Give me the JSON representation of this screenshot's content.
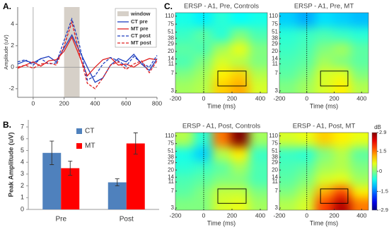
{
  "chart_data": [
    {
      "type": "line",
      "panel": "A.",
      "ylabel": "Amplitude (uV)",
      "x": [
        -100,
        -50,
        0,
        50,
        100,
        150,
        200,
        250,
        300,
        350,
        400,
        450,
        500,
        550,
        600,
        650,
        700,
        750,
        800
      ],
      "xlim": [
        -100,
        800
      ],
      "xticks": [
        0,
        200,
        400,
        600,
        800
      ],
      "ylim": [
        -2.8,
        5.6
      ],
      "yticks": [
        -2,
        0,
        2,
        4
      ],
      "window": {
        "label": "window",
        "range": [
          200,
          300
        ],
        "color": "#d6d0c8"
      },
      "series": [
        {
          "name": "CT pre",
          "color": "#1f3fbf",
          "dash": false,
          "values": [
            0.3,
            0.6,
            0.4,
            0.8,
            1.0,
            0.5,
            1.8,
            3.0,
            1.5,
            0.0,
            -1.4,
            -1.0,
            0.2,
            0.8,
            0.5,
            1.2,
            0.3,
            -0.3,
            0.8
          ]
        },
        {
          "name": "MT pre",
          "color": "#e02020",
          "dash": false,
          "values": [
            -0.1,
            0.2,
            0.5,
            0.1,
            0.6,
            0.7,
            1.5,
            2.8,
            1.0,
            -0.8,
            0.0,
            0.7,
            0.9,
            0.2,
            0.3,
            0.0,
            0.5,
            0.8,
            0.7
          ]
        },
        {
          "name": "CT post",
          "color": "#1f3fbf",
          "dash": true,
          "values": [
            0.5,
            0.7,
            0.2,
            0.8,
            0.3,
            0.4,
            2.5,
            4.5,
            2.0,
            -1.2,
            -0.8,
            0.3,
            0.9,
            0.6,
            0.1,
            1.0,
            0.4,
            0.0,
            1.1
          ]
        },
        {
          "name": "MT post",
          "color": "#e02020",
          "dash": true,
          "values": [
            0.0,
            0.2,
            -0.1,
            0.3,
            0.4,
            0.2,
            2.0,
            4.2,
            1.2,
            -1.5,
            -2.0,
            -1.0,
            0.2,
            0.5,
            -0.2,
            0.3,
            0.6,
            -0.5,
            0.6
          ]
        }
      ]
    },
    {
      "type": "bar",
      "panel": "B.",
      "ylabel": "Peak Amplitude (uV)",
      "categories": [
        "Pre",
        "Post"
      ],
      "ylim": [
        0,
        7.6
      ],
      "yticks": [
        0,
        1,
        2,
        3,
        4,
        5,
        6,
        7
      ],
      "series": [
        {
          "name": "CT",
          "color": "#4f81bd",
          "values": [
            4.8,
            2.3
          ],
          "errors": [
            1.0,
            0.3
          ]
        },
        {
          "name": "MT",
          "color": "#ff0000",
          "values": [
            3.5,
            5.6
          ],
          "errors": [
            0.6,
            0.9
          ]
        }
      ]
    },
    {
      "type": "heatmap",
      "panel": "C.",
      "title": "ERSP - A1, Pre, Controls",
      "xlabel": "Time (ms)",
      "xlim": [
        -200,
        450
      ],
      "xticks": [
        -200,
        0,
        200,
        400
      ],
      "ylim": [
        2.7,
        130
      ],
      "log_y": true,
      "yticks": [
        110,
        75,
        51,
        38,
        29,
        20,
        14,
        11,
        7,
        3
      ],
      "colormap": "jet",
      "zlim": [
        -2.9,
        2.9
      ],
      "x_edges": [
        -200,
        -70,
        60,
        190,
        320,
        450
      ],
      "y_edges": [
        2.7,
        5,
        9,
        17,
        32,
        65,
        130
      ],
      "vline": 0,
      "roi": {
        "x": [
          100,
          300
        ],
        "y": [
          3.8,
          7.8
        ]
      },
      "z": [
        [
          0.2,
          0.3,
          1.0,
          1.2,
          0.5
        ],
        [
          0,
          0.2,
          0.8,
          1.0,
          0.3
        ],
        [
          -0.3,
          0,
          0.5,
          0.3,
          0
        ],
        [
          -0.2,
          -0.3,
          0.2,
          0.6,
          0
        ],
        [
          -0.4,
          -0.2,
          -0.5,
          0,
          -0.3
        ],
        [
          -0.6,
          -0.8,
          -0.5,
          -0.7,
          -0.6
        ]
      ]
    },
    {
      "type": "heatmap",
      "title": "ERSP - A1, Pre, MT",
      "xlabel": "Time (ms)",
      "xlim": [
        -200,
        450
      ],
      "xticks": [
        -200,
        0,
        200,
        400
      ],
      "ylim": [
        2.7,
        130
      ],
      "log_y": true,
      "yticks": [
        110,
        75,
        51,
        38,
        29,
        20,
        14,
        11,
        7,
        3
      ],
      "colormap": "jet",
      "zlim": [
        -2.9,
        2.9
      ],
      "x_edges": [
        -200,
        -70,
        60,
        190,
        320,
        450
      ],
      "y_edges": [
        2.7,
        5,
        9,
        17,
        32,
        65,
        130
      ],
      "vline": 0,
      "roi": {
        "x": [
          100,
          300
        ],
        "y": [
          3.8,
          7.8
        ]
      },
      "z": [
        [
          0,
          0.2,
          0.5,
          0.8,
          0.3
        ],
        [
          -0.2,
          0,
          0.5,
          0.6,
          0
        ],
        [
          -0.3,
          -0.2,
          0.2,
          0,
          -0.2
        ],
        [
          -0.4,
          -0.3,
          0,
          0.2,
          -0.2
        ],
        [
          -0.5,
          -0.4,
          -0.3,
          -0.4,
          -0.5
        ],
        [
          -1.0,
          -1.2,
          -0.9,
          -1.0,
          -1.1
        ]
      ]
    },
    {
      "type": "heatmap",
      "title": "ERSP - A1, Post, Controls",
      "xlabel": "Time (ms)",
      "xlim": [
        -200,
        450
      ],
      "xticks": [
        -200,
        0,
        200,
        400
      ],
      "ylim": [
        2.7,
        130
      ],
      "log_y": true,
      "yticks": [
        110,
        75,
        51,
        38,
        29,
        20,
        14,
        11,
        7,
        3
      ],
      "colormap": "jet",
      "zlim": [
        -2.9,
        2.9
      ],
      "x_edges": [
        -200,
        -70,
        60,
        190,
        320,
        450
      ],
      "y_edges": [
        2.7,
        5,
        9,
        17,
        32,
        65,
        130
      ],
      "vline": 0,
      "roi": {
        "x": [
          100,
          300
        ],
        "y": [
          3.8,
          7.8
        ]
      },
      "z": [
        [
          0,
          0,
          0.5,
          0.6,
          0.2
        ],
        [
          -0.2,
          0,
          0.4,
          0.4,
          0
        ],
        [
          -0.3,
          -0.2,
          0,
          0,
          -0.3
        ],
        [
          -0.5,
          -0.4,
          -0.2,
          0.2,
          -0.3
        ],
        [
          -0.6,
          -1.0,
          0.3,
          0.8,
          -0.4
        ],
        [
          0.3,
          -0.5,
          1.5,
          2.9,
          0.2
        ]
      ]
    },
    {
      "type": "heatmap",
      "title": "ERSP - A1, Post, MT",
      "xlabel": "Time (ms)",
      "xlim": [
        -200,
        450
      ],
      "xticks": [
        -200,
        0,
        200,
        400
      ],
      "ylim": [
        2.7,
        130
      ],
      "log_y": true,
      "yticks": [
        110,
        75,
        51,
        38,
        29,
        20,
        14,
        11,
        7,
        3
      ],
      "colormap": "jet",
      "zlim": [
        -2.9,
        2.9
      ],
      "x_edges": [
        -200,
        -70,
        60,
        190,
        320,
        450
      ],
      "y_edges": [
        2.7,
        5,
        9,
        17,
        32,
        65,
        130
      ],
      "vline": 0,
      "roi": {
        "x": [
          100,
          300
        ],
        "y": [
          3.8,
          7.8
        ]
      },
      "z": [
        [
          0.3,
          0.5,
          1.8,
          2.6,
          1.5
        ],
        [
          0,
          0.3,
          1.2,
          1.8,
          0.8
        ],
        [
          -0.2,
          0,
          0.5,
          0.6,
          0.2
        ],
        [
          -0.3,
          -0.2,
          0.2,
          0.3,
          0
        ],
        [
          -0.4,
          -0.5,
          0,
          0.3,
          -0.2
        ],
        [
          0.5,
          0.6,
          1.0,
          0.8,
          0.6
        ]
      ],
      "colorbar": {
        "label": "dB",
        "ticks": [
          2.9,
          1.5,
          0,
          -1.5,
          -2.9
        ]
      }
    }
  ]
}
